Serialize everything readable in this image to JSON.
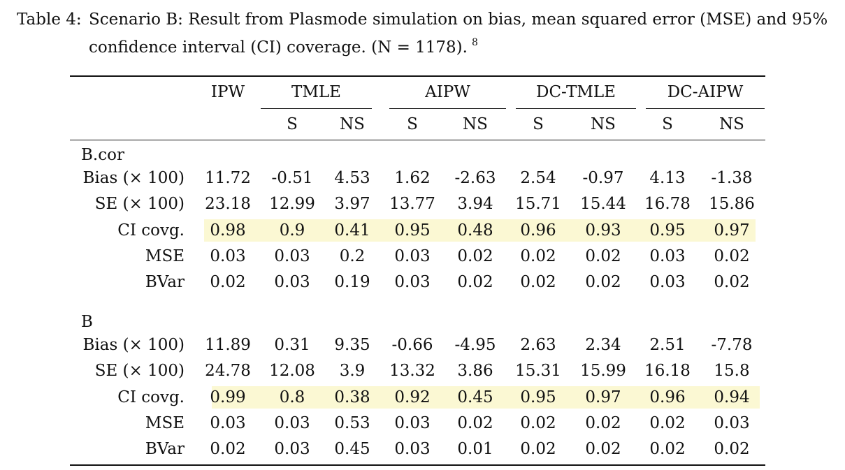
{
  "caption": {
    "label": "Table 4:",
    "line1": "Scenario B: Result from Plasmode simulation on bias, mean squared error (MSE) and 95%",
    "line2": "confidence interval (CI) coverage. (N = 1178).",
    "footnote": "8"
  },
  "header": {
    "groups": [
      "IPW",
      "TMLE",
      "AIPW",
      "DC-TMLE",
      "DC-AIPW"
    ],
    "subcols": [
      "S",
      "NS",
      "S",
      "NS",
      "S",
      "NS",
      "S",
      "NS"
    ]
  },
  "sections": [
    {
      "title": "B.cor",
      "rows": [
        {
          "label": "Bias (× 100)",
          "values": [
            "11.72",
            "-0.51",
            "4.53",
            "1.62",
            "-2.63",
            "2.54",
            "-0.97",
            "4.13",
            "-1.38"
          ]
        },
        {
          "label": "SE (× 100)",
          "values": [
            "23.18",
            "12.99",
            "3.97",
            "13.77",
            "3.94",
            "15.71",
            "15.44",
            "16.78",
            "15.86"
          ]
        },
        {
          "label": "CI covg.",
          "highlight": true,
          "values": [
            "0.98",
            "0.9",
            "0.41",
            "0.95",
            "0.48",
            "0.96",
            "0.93",
            "0.95",
            "0.97"
          ]
        },
        {
          "label": "MSE",
          "values": [
            "0.03",
            "0.03",
            "0.2",
            "0.03",
            "0.02",
            "0.02",
            "0.02",
            "0.03",
            "0.02"
          ]
        },
        {
          "label": "BVar",
          "values": [
            "0.02",
            "0.03",
            "0.19",
            "0.03",
            "0.02",
            "0.02",
            "0.02",
            "0.03",
            "0.02"
          ]
        }
      ]
    },
    {
      "title": "B",
      "rows": [
        {
          "label": "Bias (× 100)",
          "values": [
            "11.89",
            "0.31",
            "9.35",
            "-0.66",
            "-4.95",
            "2.63",
            "2.34",
            "2.51",
            "-7.78"
          ]
        },
        {
          "label": "SE (× 100)",
          "values": [
            "24.78",
            "12.08",
            "3.9",
            "13.32",
            "3.86",
            "15.31",
            "15.99",
            "16.18",
            "15.8"
          ]
        },
        {
          "label": "CI covg.",
          "highlight": true,
          "values": [
            "0.99",
            "0.8",
            "0.38",
            "0.92",
            "0.45",
            "0.95",
            "0.97",
            "0.96",
            "0.94"
          ]
        },
        {
          "label": "MSE",
          "values": [
            "0.03",
            "0.03",
            "0.53",
            "0.03",
            "0.02",
            "0.02",
            "0.02",
            "0.02",
            "0.03"
          ]
        },
        {
          "label": "BVar",
          "values": [
            "0.02",
            "0.03",
            "0.45",
            "0.03",
            "0.01",
            "0.02",
            "0.02",
            "0.02",
            "0.02"
          ]
        }
      ]
    }
  ],
  "colors": {
    "highlight": "#fbf8d3",
    "text": "#111111"
  }
}
